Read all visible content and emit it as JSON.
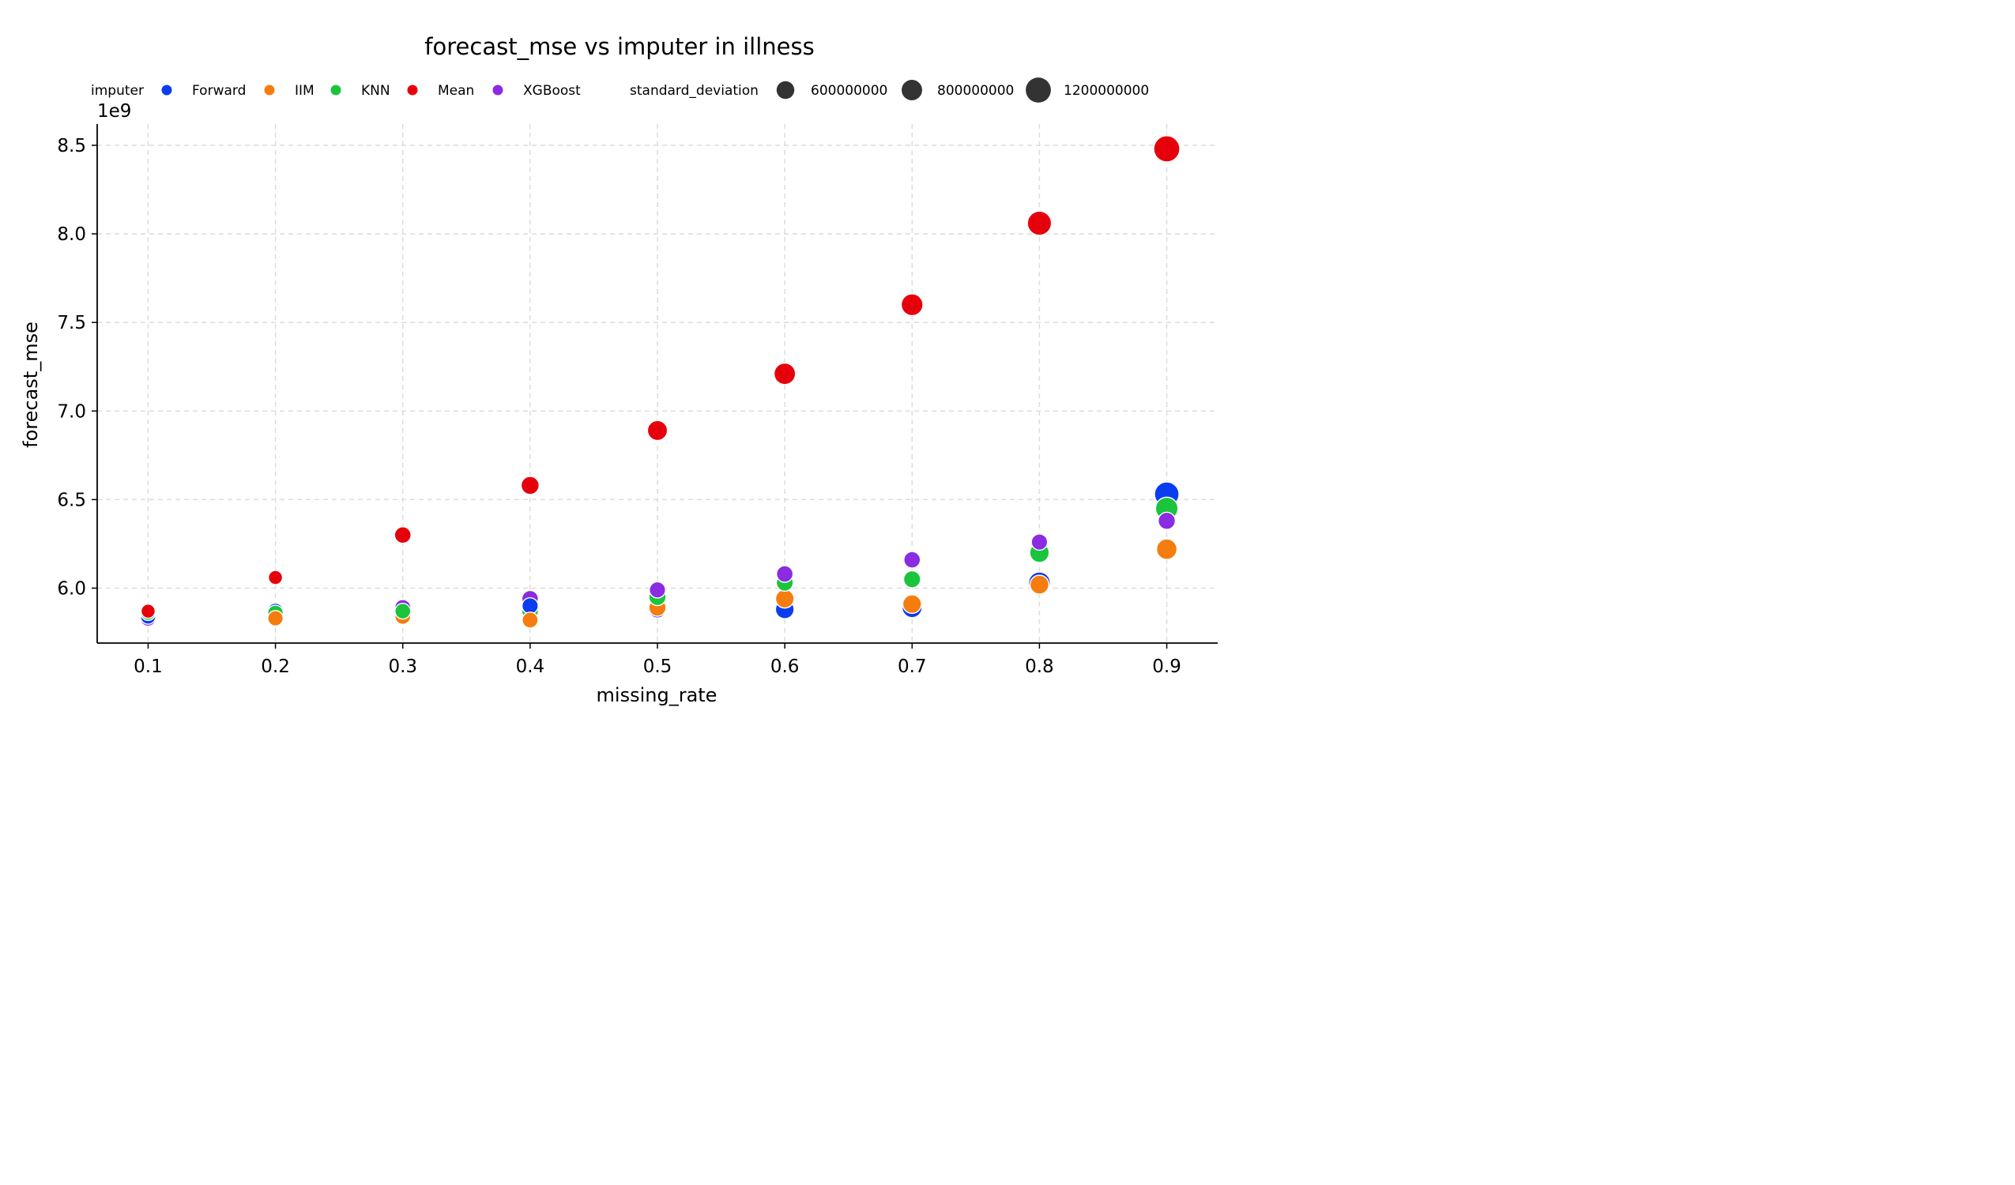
{
  "chart_data": {
    "type": "scatter",
    "title": "forecast_mse vs imputer in illness",
    "xlabel": "missing_rate",
    "ylabel": "forecast_mse",
    "y_offset_text": "1e9",
    "y_scale": 1000000000,
    "xlim": [
      0.06,
      0.94
    ],
    "ylim": [
      5.69,
      8.62
    ],
    "x_ticks": [
      0.1,
      0.2,
      0.3,
      0.4,
      0.5,
      0.6,
      0.7,
      0.8,
      0.9
    ],
    "x_tick_labels": [
      "0.1",
      "0.2",
      "0.3",
      "0.4",
      "0.5",
      "0.6",
      "0.7",
      "0.8",
      "0.9"
    ],
    "y_ticks": [
      6.0,
      6.5,
      7.0,
      7.5,
      8.0,
      8.5
    ],
    "y_tick_labels": [
      "6.0",
      "6.5",
      "7.0",
      "7.5",
      "8.0",
      "8.5"
    ],
    "grid": true,
    "legend": {
      "placement": "top",
      "hue_title": "imputer",
      "size_title": "standard_deviation",
      "size_entries": [
        {
          "label": "600000000",
          "value": 600000000
        },
        {
          "label": "800000000",
          "value": 800000000
        },
        {
          "label": "1200000000",
          "value": 1200000000
        }
      ]
    },
    "x": [
      0.1,
      0.2,
      0.3,
      0.4,
      0.5,
      0.6,
      0.7,
      0.8,
      0.9
    ],
    "series": [
      {
        "name": "Forward",
        "color": "#0b3cf0",
        "values": [
          5.84,
          5.87,
          5.86,
          5.9,
          5.88,
          5.88,
          5.89,
          6.03,
          6.53
        ],
        "std": [
          450000000,
          480000000,
          480000000,
          500000000,
          560000000,
          660000000,
          760000000,
          900000000,
          1150000000
        ]
      },
      {
        "name": "IIM",
        "color": "#f57d10",
        "values": [
          5.86,
          5.83,
          5.84,
          5.82,
          5.89,
          5.94,
          5.91,
          6.02,
          6.22
        ],
        "std": [
          420000000,
          450000000,
          470000000,
          480000000,
          560000000,
          650000000,
          660000000,
          680000000,
          800000000
        ]
      },
      {
        "name": "KNN",
        "color": "#1ac43c",
        "values": [
          5.86,
          5.86,
          5.87,
          5.87,
          5.95,
          6.03,
          6.05,
          6.2,
          6.45
        ],
        "std": [
          420000000,
          460000000,
          470000000,
          520000000,
          560000000,
          540000000,
          550000000,
          720000000,
          960000000
        ]
      },
      {
        "name": "Mean",
        "color": "#e6000c",
        "values": [
          5.87,
          6.06,
          6.3,
          6.58,
          6.89,
          7.21,
          7.6,
          8.06,
          8.48
        ],
        "std": [
          380000000,
          380000000,
          520000000,
          620000000,
          760000000,
          880000000,
          900000000,
          1100000000,
          1300000000
        ]
      },
      {
        "name": "XGBoost",
        "color": "#8b2be2",
        "values": [
          5.83,
          5.84,
          5.89,
          5.94,
          5.99,
          6.08,
          6.16,
          6.26,
          6.38
        ],
        "std": [
          480000000,
          490000000,
          500000000,
          520000000,
          500000000,
          520000000,
          520000000,
          500000000,
          560000000
        ]
      }
    ]
  }
}
